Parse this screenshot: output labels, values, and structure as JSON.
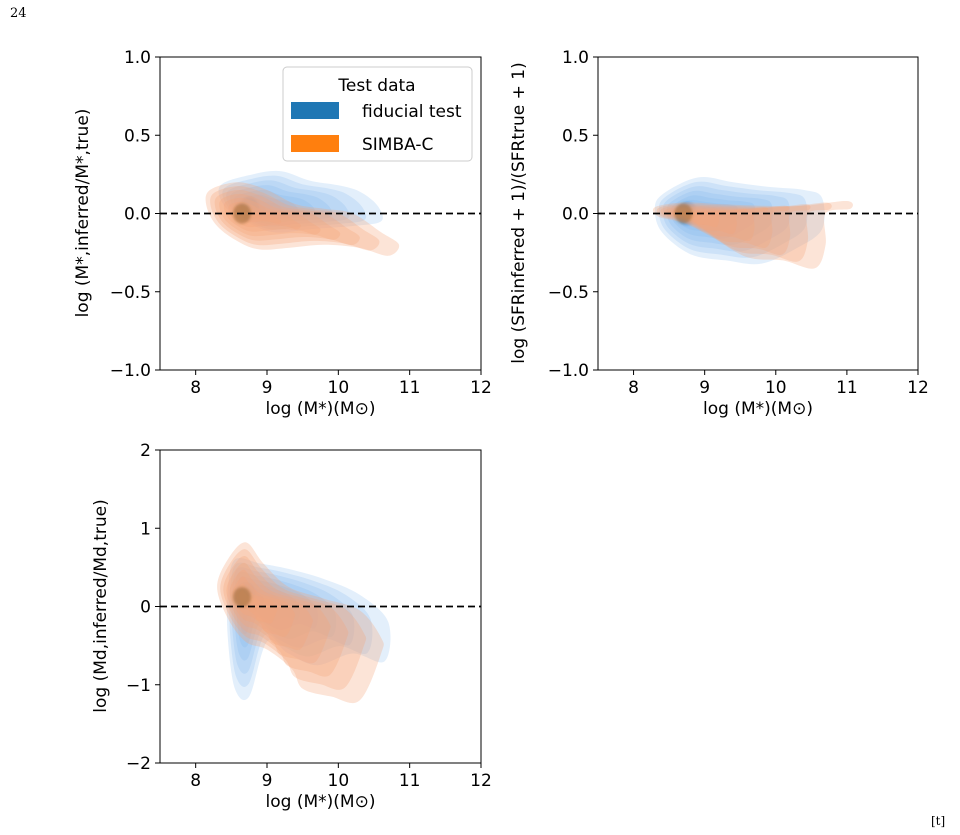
{
  "page": {
    "number": "24",
    "float_mark": "[t]"
  },
  "colors": {
    "fiducial": "#1f77b4",
    "simba": "#ff7f0e",
    "fiducial_fill": "#7fb6ec",
    "simba_fill": "#f6a47a",
    "core": "#8a5a1e"
  },
  "chart_data": [
    {
      "type": "kde-contour",
      "panel": "top-left",
      "xlabel": "log (M*)(M⊙)",
      "ylabel": "log (M*,inferred/M*,true)",
      "xlim": [
        7.5,
        12
      ],
      "ylim": [
        -1.0,
        1.0
      ],
      "xticks": [
        "8",
        "9",
        "10",
        "11",
        "12"
      ],
      "yticks": [
        "1.0",
        "0.5",
        "0.0",
        "−0.5",
        "−1.0"
      ],
      "reference_line": 0,
      "legend": {
        "title": "Test data",
        "placement": "upper-right",
        "entries": [
          "fiducial test",
          "SIMBA-C"
        ]
      },
      "series": [
        {
          "name": "fiducial test",
          "outline": [
            [
              8.35,
              0.18
            ],
            [
              8.8,
              0.25
            ],
            [
              9.2,
              0.27
            ],
            [
              9.6,
              0.21
            ],
            [
              10.0,
              0.18
            ],
            [
              10.3,
              0.14
            ],
            [
              10.55,
              0.05
            ],
            [
              10.6,
              -0.05
            ],
            [
              10.2,
              -0.08
            ],
            [
              9.6,
              -0.1
            ],
            [
              9.1,
              -0.12
            ],
            [
              8.7,
              -0.05
            ],
            [
              8.4,
              0.05
            ]
          ],
          "peak": [
            8.75,
            0.03
          ]
        },
        {
          "name": "SIMBA-C",
          "outline": [
            [
              8.2,
              0.15
            ],
            [
              8.6,
              0.2
            ],
            [
              9.0,
              0.15
            ],
            [
              9.4,
              0.06
            ],
            [
              9.8,
              0.03
            ],
            [
              10.2,
              0.0
            ],
            [
              10.6,
              -0.12
            ],
            [
              10.85,
              -0.2
            ],
            [
              10.7,
              -0.27
            ],
            [
              10.3,
              -0.22
            ],
            [
              9.8,
              -0.2
            ],
            [
              9.3,
              -0.22
            ],
            [
              8.9,
              -0.23
            ],
            [
              8.6,
              -0.18
            ],
            [
              8.3,
              -0.08
            ],
            [
              8.15,
              0.05
            ]
          ],
          "peak": [
            8.65,
            0.0
          ]
        }
      ]
    },
    {
      "type": "kde-contour",
      "panel": "top-right",
      "xlabel": "log (M*)(M⊙)",
      "ylabel": "log (SFRinferred + 1)/(SFRtrue + 1)",
      "xlim": [
        7.5,
        12
      ],
      "ylim": [
        -1.0,
        1.0
      ],
      "xticks": [
        "8",
        "9",
        "10",
        "11",
        "12"
      ],
      "yticks": [
        "1.0",
        "0.5",
        "0.0",
        "−0.5",
        "−1.0"
      ],
      "reference_line": 0,
      "series": [
        {
          "name": "fiducial test",
          "outline": [
            [
              8.4,
              0.12
            ],
            [
              8.9,
              0.23
            ],
            [
              9.4,
              0.2
            ],
            [
              9.9,
              0.17
            ],
            [
              10.4,
              0.15
            ],
            [
              10.65,
              0.1
            ],
            [
              10.65,
              -0.1
            ],
            [
              10.3,
              -0.22
            ],
            [
              9.8,
              -0.32
            ],
            [
              9.3,
              -0.3
            ],
            [
              8.8,
              -0.26
            ],
            [
              8.4,
              -0.12
            ],
            [
              8.3,
              0.02
            ]
          ],
          "peak": [
            8.75,
            0.0
          ]
        },
        {
          "name": "SIMBA-C",
          "outline": [
            [
              8.3,
              0.04
            ],
            [
              8.7,
              0.07
            ],
            [
              9.2,
              0.06
            ],
            [
              9.8,
              0.05
            ],
            [
              10.4,
              0.05
            ],
            [
              11.0,
              0.08
            ],
            [
              11.05,
              0.03
            ],
            [
              10.7,
              0.0
            ],
            [
              10.7,
              -0.2
            ],
            [
              10.55,
              -0.35
            ],
            [
              10.1,
              -0.3
            ],
            [
              9.6,
              -0.28
            ],
            [
              9.1,
              -0.15
            ],
            [
              8.7,
              -0.06
            ],
            [
              8.35,
              -0.02
            ]
          ],
          "peak": [
            8.7,
            0.0
          ]
        }
      ]
    },
    {
      "type": "kde-contour",
      "panel": "bottom-left",
      "xlabel": "log (M*)(M⊙)",
      "ylabel": "log (Md,inferred/Md,true)",
      "xlim": [
        7.5,
        12
      ],
      "ylim": [
        -2,
        2
      ],
      "xticks": [
        "8",
        "9",
        "10",
        "11",
        "12"
      ],
      "yticks": [
        "2",
        "1",
        "0",
        "−1",
        "−2"
      ],
      "reference_line": 0,
      "series": [
        {
          "name": "fiducial test",
          "outline": [
            [
              8.55,
              0.6
            ],
            [
              8.9,
              0.55
            ],
            [
              9.3,
              0.48
            ],
            [
              9.8,
              0.35
            ],
            [
              10.3,
              0.15
            ],
            [
              10.7,
              -0.2
            ],
            [
              10.65,
              -0.7
            ],
            [
              10.2,
              -0.6
            ],
            [
              9.7,
              -0.75
            ],
            [
              9.3,
              -0.6
            ],
            [
              9.0,
              -0.45
            ],
            [
              8.75,
              -1.15
            ],
            [
              8.55,
              -1.05
            ],
            [
              8.45,
              -0.4
            ],
            [
              8.45,
              0.2
            ]
          ],
          "peak": [
            8.7,
            0.15
          ]
        },
        {
          "name": "SIMBA-C",
          "outline": [
            [
              8.45,
              0.6
            ],
            [
              8.7,
              0.82
            ],
            [
              8.95,
              0.55
            ],
            [
              9.3,
              0.25
            ],
            [
              9.8,
              0.1
            ],
            [
              10.3,
              -0.05
            ],
            [
              10.6,
              -0.4
            ],
            [
              10.6,
              -0.6
            ],
            [
              10.3,
              -1.2
            ],
            [
              9.9,
              -1.15
            ],
            [
              9.5,
              -1.05
            ],
            [
              9.35,
              -0.8
            ],
            [
              9.0,
              -0.55
            ],
            [
              8.7,
              -0.45
            ],
            [
              8.45,
              -0.15
            ],
            [
              8.3,
              0.25
            ]
          ],
          "peak": [
            8.65,
            0.12
          ]
        }
      ]
    }
  ]
}
